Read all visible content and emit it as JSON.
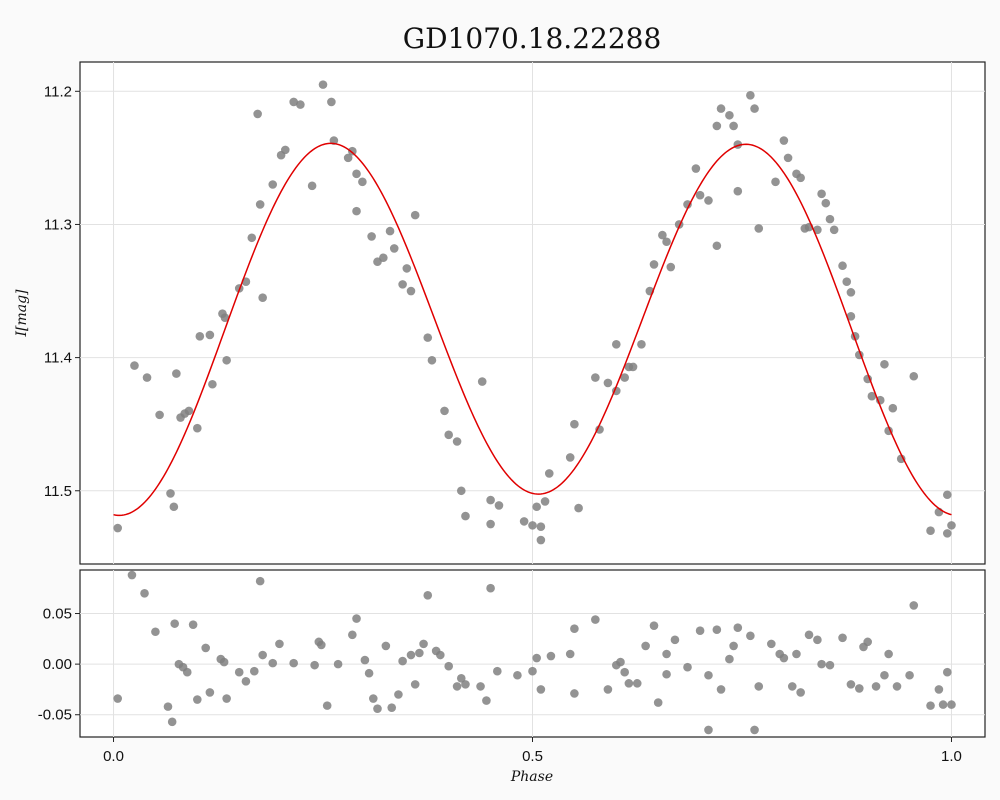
{
  "chart_data": [
    {
      "type": "scatter",
      "panel": "main",
      "title": "GD1070.18.22288",
      "xlabel": "",
      "ylabel": "I[mag]",
      "xlim": [
        -0.04,
        1.04
      ],
      "ylim": [
        11.555,
        11.178
      ],
      "y_inverted": true,
      "xticks": [
        0.0,
        0.5,
        1.0
      ],
      "yticks": [
        11.2,
        11.3,
        11.4,
        11.5
      ],
      "ytick_labels": [
        "11.2",
        "11.3",
        "11.4",
        "11.5"
      ],
      "grid": true,
      "point_color": "#808080",
      "fit_color": "#e00000",
      "points": {
        "x": [
          0.005,
          0.025,
          0.04,
          0.055,
          0.068,
          0.072,
          0.075,
          0.08,
          0.085,
          0.09,
          0.1,
          0.103,
          0.115,
          0.118,
          0.13,
          0.133,
          0.135,
          0.15,
          0.158,
          0.165,
          0.172,
          0.175,
          0.178,
          0.19,
          0.2,
          0.205,
          0.215,
          0.223,
          0.237,
          0.25,
          0.26,
          0.263,
          0.28,
          0.285,
          0.29,
          0.29,
          0.297,
          0.308,
          0.315,
          0.322,
          0.33,
          0.335,
          0.345,
          0.35,
          0.355,
          0.36,
          0.375,
          0.38,
          0.395,
          0.4,
          0.41,
          0.415,
          0.42,
          0.44,
          0.45,
          0.45,
          0.46,
          0.49,
          0.5,
          0.505,
          0.51,
          0.51,
          0.515,
          0.52,
          0.545,
          0.55,
          0.555,
          0.575,
          0.58,
          0.59,
          0.6,
          0.6,
          0.61,
          0.615,
          0.62,
          0.63,
          0.64,
          0.645,
          0.655,
          0.66,
          0.665,
          0.675,
          0.685,
          0.695,
          0.7,
          0.71,
          0.72,
          0.72,
          0.725,
          0.735,
          0.74,
          0.745,
          0.745,
          0.76,
          0.765,
          0.77,
          0.79,
          0.8,
          0.805,
          0.815,
          0.82,
          0.825,
          0.83,
          0.84,
          0.845,
          0.85,
          0.855,
          0.86,
          0.87,
          0.875,
          0.88,
          0.88,
          0.885,
          0.89,
          0.9,
          0.905,
          0.915,
          0.92,
          0.925,
          0.93,
          0.94,
          0.955,
          0.975,
          0.985,
          0.995,
          0.995,
          1.0
        ],
        "y": [
          11.528,
          11.406,
          11.415,
          11.443,
          11.502,
          11.512,
          11.412,
          11.445,
          11.442,
          11.44,
          11.453,
          11.384,
          11.383,
          11.42,
          11.367,
          11.37,
          11.402,
          11.348,
          11.343,
          11.31,
          11.217,
          11.285,
          11.355,
          11.27,
          11.248,
          11.244,
          11.208,
          11.21,
          11.271,
          11.195,
          11.208,
          11.237,
          11.25,
          11.245,
          11.29,
          11.262,
          11.268,
          11.309,
          11.328,
          11.325,
          11.305,
          11.318,
          11.345,
          11.333,
          11.35,
          11.293,
          11.385,
          11.402,
          11.44,
          11.458,
          11.463,
          11.5,
          11.519,
          11.418,
          11.507,
          11.525,
          11.511,
          11.523,
          11.526,
          11.512,
          11.527,
          11.537,
          11.508,
          11.487,
          11.475,
          11.45,
          11.513,
          11.415,
          11.454,
          11.419,
          11.39,
          11.425,
          11.415,
          11.407,
          11.407,
          11.39,
          11.35,
          11.33,
          11.308,
          11.313,
          11.332,
          11.3,
          11.285,
          11.258,
          11.278,
          11.282,
          11.226,
          11.316,
          11.213,
          11.218,
          11.226,
          11.24,
          11.275,
          11.203,
          11.213,
          11.303,
          11.268,
          11.237,
          11.25,
          11.262,
          11.265,
          11.303,
          11.302,
          11.304,
          11.277,
          11.284,
          11.296,
          11.304,
          11.331,
          11.343,
          11.351,
          11.369,
          11.384,
          11.398,
          11.416,
          11.429,
          11.432,
          11.405,
          11.455,
          11.438,
          11.476,
          11.414,
          11.53,
          11.516,
          11.503,
          11.532,
          11.526
        ]
      },
      "fit": {
        "mean": 11.375,
        "terms": [
          {
            "harmonic": 1,
            "amplitude": 0.008,
            "phase": 0.0
          },
          {
            "harmonic": 2,
            "amplitude": 0.1355,
            "phase_of_min": 0.257
          }
        ]
      }
    },
    {
      "type": "scatter",
      "panel": "residuals",
      "title": "",
      "xlabel": "Phase",
      "ylabel": "",
      "xlim": [
        -0.04,
        1.04
      ],
      "ylim": [
        -0.072,
        0.093
      ],
      "xticks": [
        0.0,
        0.5,
        1.0
      ],
      "xtick_labels": [
        "0.0",
        "0.5",
        "1.0"
      ],
      "yticks": [
        -0.05,
        0.0,
        0.05
      ],
      "ytick_labels": [
        "-0.05",
        "0.00",
        "0.05"
      ],
      "grid": true,
      "point_color": "#808080",
      "points": {
        "x": [
          0.005,
          0.022,
          0.037,
          0.05,
          0.065,
          0.07,
          0.073,
          0.078,
          0.083,
          0.088,
          0.095,
          0.1,
          0.11,
          0.115,
          0.128,
          0.132,
          0.135,
          0.15,
          0.158,
          0.168,
          0.175,
          0.178,
          0.19,
          0.198,
          0.215,
          0.24,
          0.245,
          0.248,
          0.255,
          0.268,
          0.285,
          0.29,
          0.3,
          0.305,
          0.31,
          0.315,
          0.325,
          0.332,
          0.34,
          0.345,
          0.355,
          0.36,
          0.365,
          0.37,
          0.375,
          0.385,
          0.39,
          0.4,
          0.41,
          0.415,
          0.42,
          0.438,
          0.445,
          0.45,
          0.458,
          0.482,
          0.5,
          0.505,
          0.51,
          0.522,
          0.545,
          0.55,
          0.55,
          0.575,
          0.59,
          0.6,
          0.605,
          0.61,
          0.615,
          0.625,
          0.635,
          0.645,
          0.65,
          0.66,
          0.66,
          0.67,
          0.685,
          0.7,
          0.71,
          0.71,
          0.72,
          0.725,
          0.735,
          0.74,
          0.745,
          0.76,
          0.765,
          0.77,
          0.785,
          0.795,
          0.8,
          0.81,
          0.815,
          0.82,
          0.83,
          0.84,
          0.845,
          0.855,
          0.87,
          0.88,
          0.89,
          0.895,
          0.9,
          0.91,
          0.92,
          0.925,
          0.935,
          0.95,
          0.955,
          0.975,
          0.985,
          0.99,
          0.995,
          1.0
        ],
        "y": [
          -0.034,
          0.088,
          0.07,
          0.032,
          -0.042,
          -0.057,
          0.04,
          0.0,
          -0.003,
          -0.008,
          0.039,
          -0.035,
          0.016,
          -0.028,
          0.005,
          0.002,
          -0.034,
          -0.008,
          -0.017,
          -0.007,
          0.082,
          0.009,
          0.001,
          0.02,
          0.001,
          -0.001,
          0.022,
          0.019,
          -0.041,
          0.0,
          0.029,
          0.045,
          0.004,
          -0.009,
          -0.034,
          -0.044,
          0.018,
          -0.043,
          -0.03,
          0.003,
          0.009,
          -0.02,
          0.011,
          0.02,
          0.068,
          0.013,
          0.009,
          -0.002,
          -0.022,
          -0.014,
          -0.02,
          -0.022,
          -0.036,
          0.075,
          -0.007,
          -0.011,
          -0.007,
          0.006,
          -0.025,
          0.008,
          0.01,
          0.035,
          -0.029,
          0.044,
          -0.025,
          -0.001,
          0.002,
          -0.008,
          -0.019,
          -0.019,
          0.018,
          0.038,
          -0.038,
          -0.01,
          0.01,
          0.024,
          -0.003,
          0.033,
          -0.011,
          -0.065,
          0.034,
          -0.025,
          0.005,
          0.018,
          0.036,
          0.028,
          -0.065,
          -0.022,
          0.02,
          0.01,
          0.006,
          -0.022,
          0.01,
          -0.028,
          0.029,
          0.024,
          0.0,
          -0.001,
          0.026,
          -0.02,
          -0.024,
          0.017,
          0.022,
          -0.022,
          -0.011,
          0.01,
          -0.022,
          -0.011,
          0.058,
          -0.041,
          -0.025,
          -0.04,
          -0.008,
          -0.04
        ]
      }
    }
  ]
}
